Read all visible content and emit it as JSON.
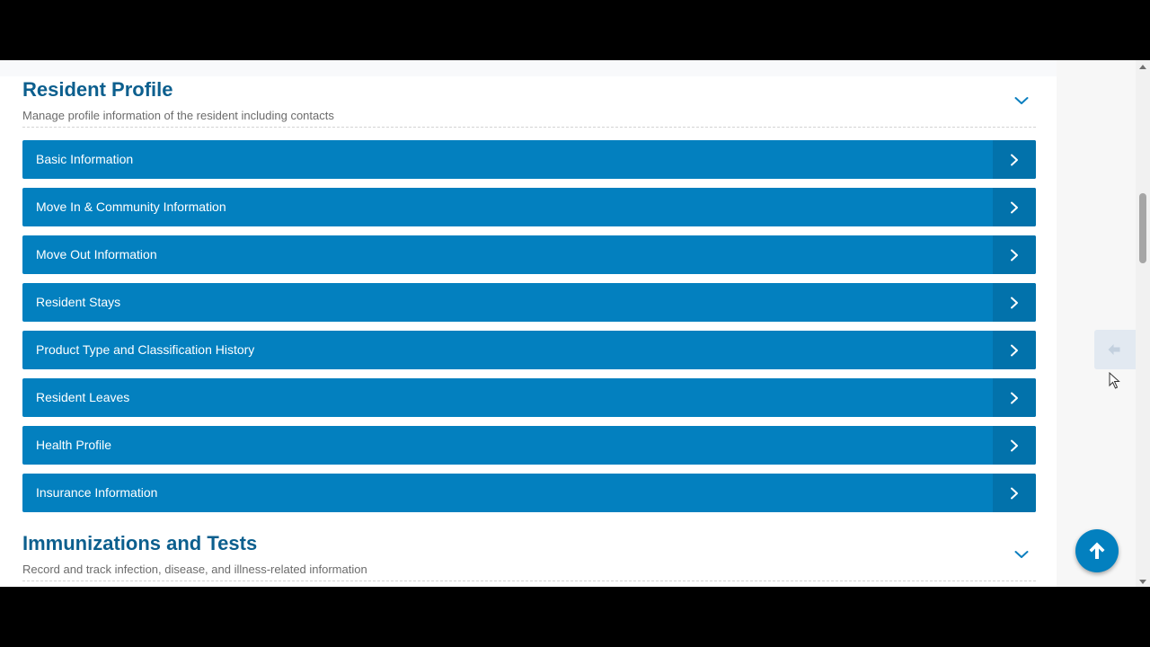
{
  "sections": [
    {
      "title": "Resident Profile",
      "subtitle": "Manage profile information of the resident including contacts",
      "items": [
        {
          "label": "Basic Information"
        },
        {
          "label": "Move In & Community Information"
        },
        {
          "label": "Move Out Information"
        },
        {
          "label": "Resident Stays"
        },
        {
          "label": "Product Type and Classification History"
        },
        {
          "label": "Resident Leaves"
        },
        {
          "label": "Health Profile"
        },
        {
          "label": "Insurance Information"
        }
      ]
    },
    {
      "title": "Immunizations and Tests",
      "subtitle": "Record and track infection, disease, and illness-related information"
    }
  ],
  "icons": {
    "collapse": "chevron-down-icon",
    "item_arrow": "chevron-right-icon",
    "side_toggle": "arrow-left-icon",
    "back_to_top": "arrow-up-icon"
  },
  "colors": {
    "title": "#0c5f8e",
    "item_background": "#0380bf",
    "item_arrow_background": "#0272ab",
    "back_to_top": "#0380bf"
  }
}
